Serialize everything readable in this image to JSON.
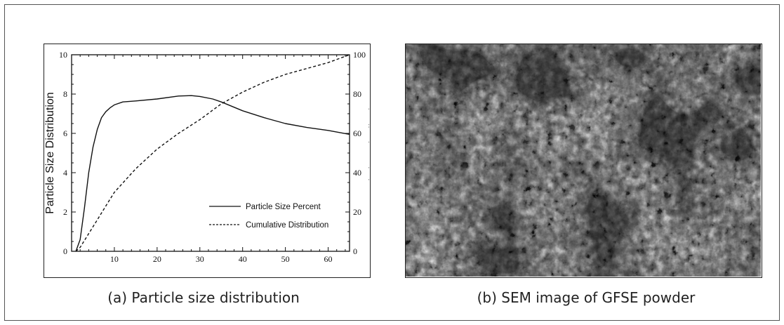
{
  "figure": {
    "caption_a": "(a) Particle size distribution",
    "caption_b": "(b) SEM image of GFSE powder"
  },
  "chart_data": {
    "type": "line",
    "xlabel": "",
    "ylabel": "Particle Size Distribution",
    "y2label": "Cumulative Distribution",
    "xlim": [
      0,
      65
    ],
    "ylim": [
      0,
      10
    ],
    "y2lim": [
      0,
      100
    ],
    "x_ticks": [
      10,
      20,
      30,
      40,
      50,
      60
    ],
    "y_ticks": [
      0,
      2,
      4,
      6,
      8,
      10
    ],
    "y2_ticks": [
      0,
      20,
      40,
      60,
      80,
      100
    ],
    "legend_position": "bottom-right",
    "series": [
      {
        "name": "Particle Size Percent",
        "axis": "left",
        "style": "solid",
        "x": [
          1,
          2,
          3,
          4,
          5,
          6,
          7,
          8,
          9,
          10,
          12,
          15,
          20,
          25,
          28,
          30,
          33,
          35,
          40,
          45,
          50,
          55,
          60,
          65
        ],
        "y": [
          0,
          0.6,
          2.2,
          4.0,
          5.3,
          6.2,
          6.8,
          7.1,
          7.3,
          7.45,
          7.6,
          7.65,
          7.75,
          7.9,
          7.92,
          7.88,
          7.75,
          7.6,
          7.15,
          6.8,
          6.5,
          6.3,
          6.15,
          5.95
        ]
      },
      {
        "name": "Cumulative Distribution",
        "axis": "right",
        "style": "dashed",
        "x": [
          1,
          2,
          4,
          6,
          8,
          10,
          15,
          20,
          25,
          30,
          35,
          40,
          45,
          50,
          55,
          60,
          65
        ],
        "y": [
          0,
          2,
          9,
          16,
          23,
          30,
          42,
          52,
          60,
          67,
          75,
          81,
          86,
          90,
          93,
          96,
          100
        ]
      }
    ]
  },
  "sem_image": {
    "description_name": "sem-micrograph"
  }
}
